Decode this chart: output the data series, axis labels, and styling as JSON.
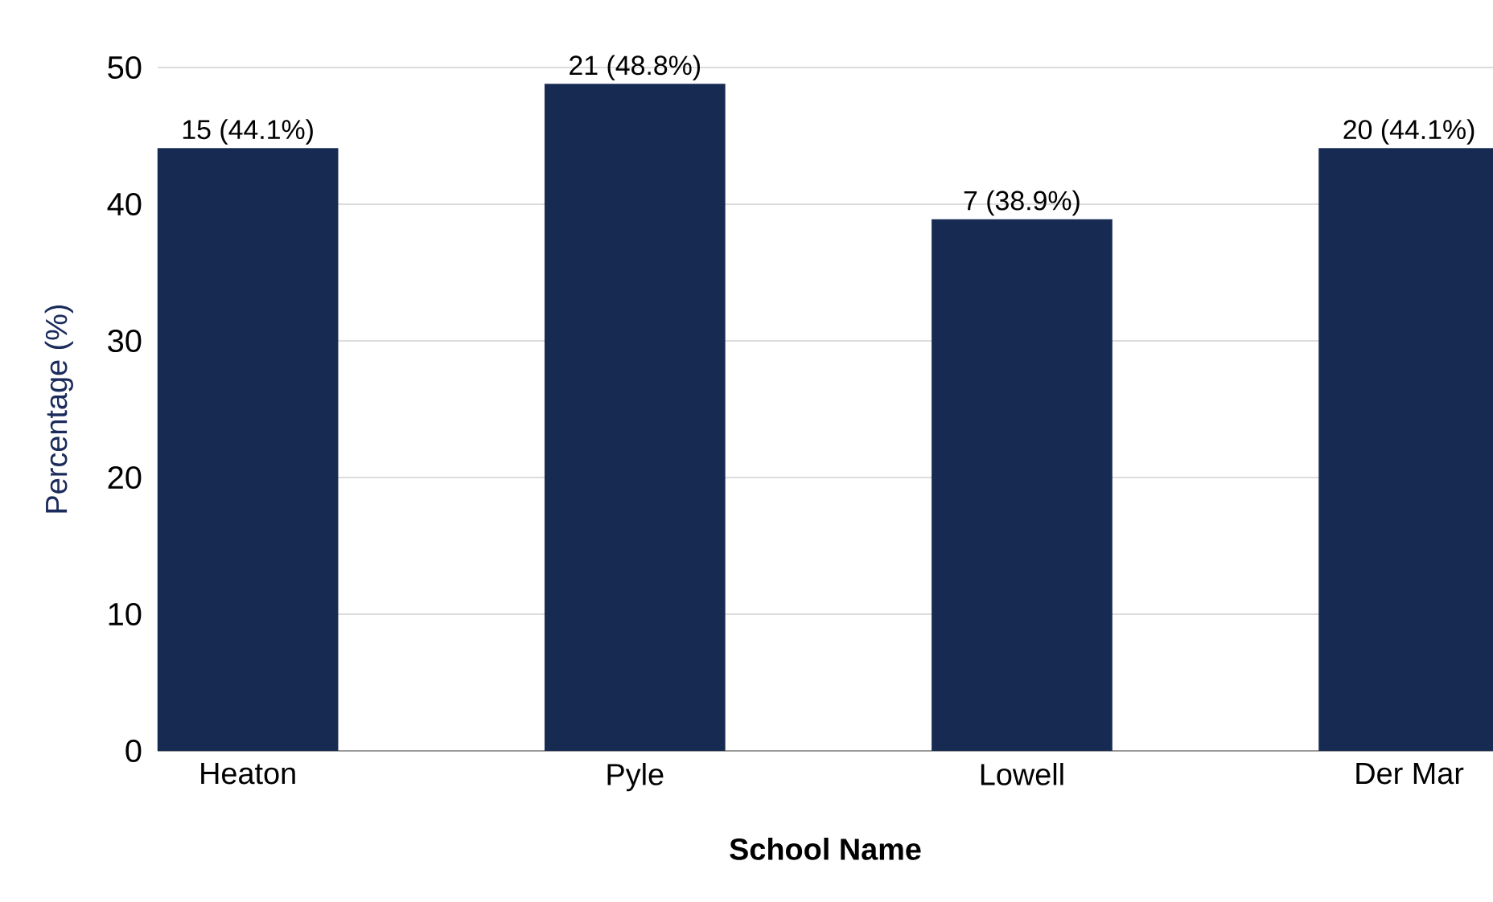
{
  "chart_data": {
    "type": "bar",
    "xlabel": "School Name",
    "ylabel": "Percentage (%)",
    "categories": [
      "Heaton",
      "Pyle",
      "Lowell",
      "Der Mar"
    ],
    "values": [
      44.1,
      48.8,
      38.9,
      44.1
    ],
    "value_labels": [
      "15 (44.1%)",
      "21 (48.8%)",
      "7 (38.9%)",
      "20 (44.1%)"
    ],
    "color": "#172a52",
    "ylim": [
      0,
      50
    ],
    "yticks": [
      0,
      10,
      20,
      30,
      40,
      50
    ],
    "grid": "y"
  }
}
